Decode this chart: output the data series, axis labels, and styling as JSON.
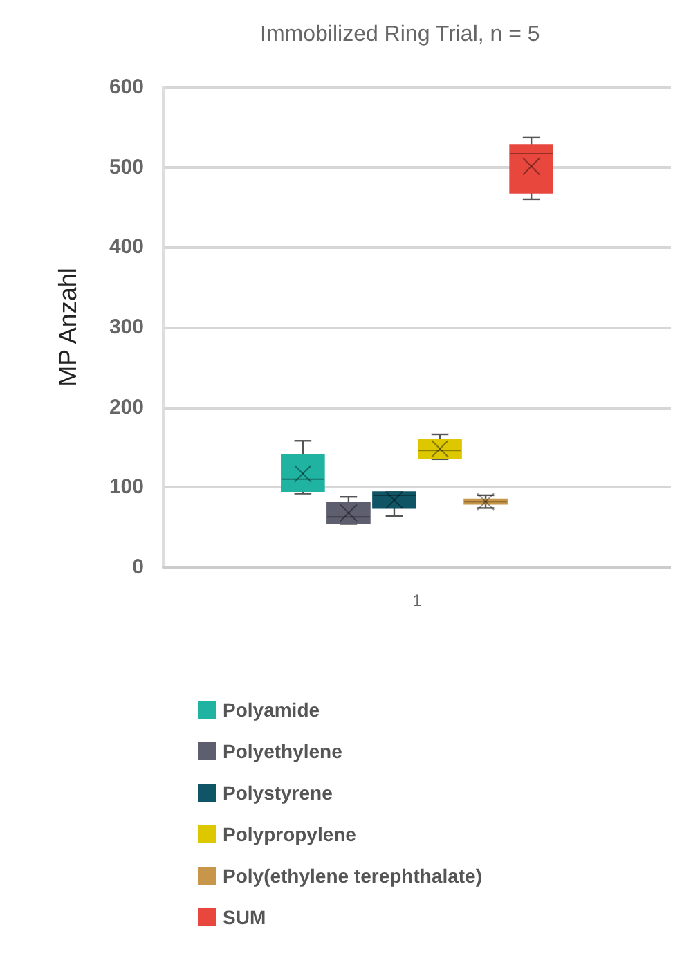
{
  "chart_data": {
    "type": "box",
    "title": "Immobilized Ring Trial, n = 5",
    "ylabel": "MP Anzahl",
    "categories": [
      "1"
    ],
    "ylim": [
      0,
      600
    ],
    "yticks": [
      0,
      100,
      200,
      300,
      400,
      500,
      600
    ],
    "grid": "y",
    "legend": "bottom",
    "series": [
      {
        "name": "Polyamide",
        "color": "#20b3a2",
        "boxes": [
          {
            "low": 92,
            "q1": 95,
            "median": 110,
            "q3": 140,
            "high": 158,
            "mean": 117
          }
        ]
      },
      {
        "name": "Polyethylene",
        "color": "#5e5f6e",
        "boxes": [
          {
            "low": 54,
            "q1": 55,
            "median": 63,
            "q3": 81,
            "high": 88,
            "mean": 68
          }
        ]
      },
      {
        "name": "Polystyrene",
        "color": "#0f5566",
        "boxes": [
          {
            "low": 64,
            "q1": 74,
            "median": 90,
            "q3": 94,
            "high": 94,
            "mean": 84
          }
        ]
      },
      {
        "name": "Polypropylene",
        "color": "#ddc800",
        "boxes": [
          {
            "low": 135,
            "q1": 136,
            "median": 146,
            "q3": 160,
            "high": 166,
            "mean": 148
          }
        ]
      },
      {
        "name": "Poly(ethylene terephthalate)",
        "color": "#c8964a",
        "boxes": [
          {
            "low": 74,
            "q1": 79,
            "median": 82,
            "q3": 85,
            "high": 90,
            "mean": 82
          }
        ]
      },
      {
        "name": "SUM",
        "color": "#e8473e",
        "boxes": [
          {
            "low": 460,
            "q1": 468,
            "median": 517,
            "q3": 528,
            "high": 537,
            "mean": 501
          }
        ]
      }
    ]
  }
}
